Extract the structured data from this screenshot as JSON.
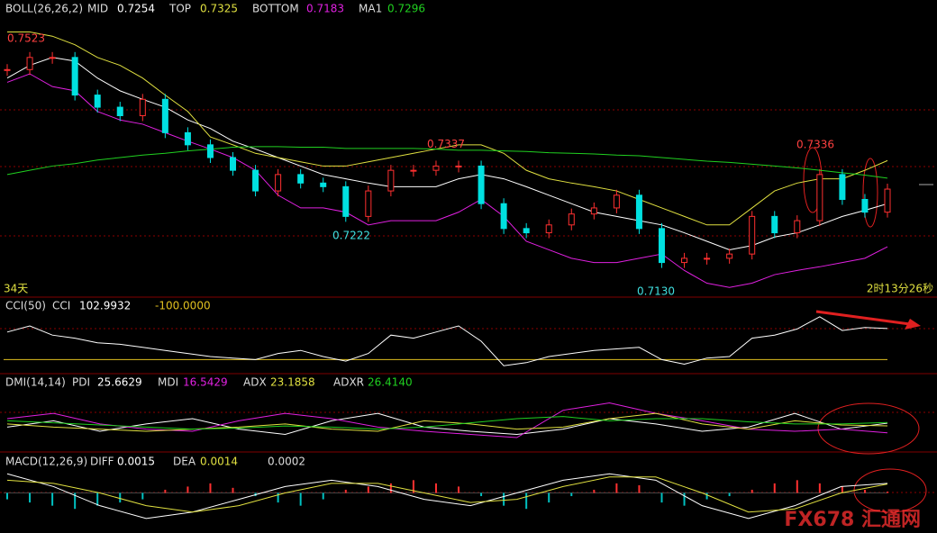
{
  "chart_data": [
    {
      "type": "candlestick",
      "title": "BOLL(26,26,2)",
      "ylim": [
        0.71,
        0.756
      ],
      "close": [
        0.7475,
        0.7495,
        0.7495,
        0.7433,
        0.7413,
        0.7399,
        0.7426,
        0.7371,
        0.7351,
        0.733,
        0.7309,
        0.7275,
        0.7302,
        0.7288,
        0.7282,
        0.7233,
        0.7275,
        0.7309,
        0.7309,
        0.7316,
        0.7316,
        0.7254,
        0.7213,
        0.7206,
        0.7219,
        0.7237,
        0.7247,
        0.7268,
        0.7213,
        0.7157,
        0.7164,
        0.7164,
        0.7171,
        0.7233,
        0.7206,
        0.7226,
        0.7302,
        0.7261,
        0.724,
        0.7278
      ],
      "series": [
        {
          "name": "MID",
          "color": "#ffffff",
          "value": 0.7254,
          "values": [
            0.7461,
            0.7482,
            0.7495,
            0.7489,
            0.7461,
            0.744,
            0.7426,
            0.7413,
            0.7392,
            0.7378,
            0.7357,
            0.7344,
            0.733,
            0.7316,
            0.7302,
            0.7295,
            0.7288,
            0.7282,
            0.7282,
            0.7282,
            0.7295,
            0.7302,
            0.7295,
            0.7282,
            0.7268,
            0.7254,
            0.724,
            0.7233,
            0.7226,
            0.7219,
            0.7206,
            0.7192,
            0.7178,
            0.7185,
            0.7199,
            0.7206,
            0.7219,
            0.7233,
            0.7243,
            0.7254
          ]
        },
        {
          "name": "TOP",
          "color": "#e0e040",
          "value": 0.7325,
          "values": [
            0.7537,
            0.7537,
            0.753,
            0.7516,
            0.7495,
            0.7482,
            0.7461,
            0.7433,
            0.7406,
            0.7364,
            0.7351,
            0.7337,
            0.733,
            0.7323,
            0.7316,
            0.7316,
            0.7323,
            0.733,
            0.7337,
            0.7344,
            0.7351,
            0.7351,
            0.7337,
            0.7309,
            0.7295,
            0.7288,
            0.7282,
            0.7275,
            0.7261,
            0.7247,
            0.7233,
            0.7219,
            0.7219,
            0.7247,
            0.7275,
            0.7288,
            0.7295,
            0.7295,
            0.7309,
            0.7325
          ]
        },
        {
          "name": "BOTTOM",
          "color": "#e020e0",
          "value": 0.7183,
          "values": [
            0.7454,
            0.7468,
            0.7447,
            0.744,
            0.7406,
            0.7392,
            0.7385,
            0.7371,
            0.7357,
            0.7344,
            0.733,
            0.7309,
            0.7268,
            0.7247,
            0.7247,
            0.724,
            0.7219,
            0.7226,
            0.7226,
            0.7226,
            0.724,
            0.7261,
            0.7233,
            0.7192,
            0.7178,
            0.7164,
            0.7157,
            0.7157,
            0.7164,
            0.7171,
            0.7144,
            0.7123,
            0.7116,
            0.7123,
            0.7137,
            0.7144,
            0.715,
            0.7157,
            0.7164,
            0.7183
          ]
        },
        {
          "name": "MA1",
          "color": "#20d020",
          "value": 0.7296,
          "values": [
            0.7302,
            0.7309,
            0.7316,
            0.732,
            0.7326,
            0.733,
            0.7334,
            0.7337,
            0.7341,
            0.7344,
            0.7347,
            0.7348,
            0.7348,
            0.7347,
            0.7347,
            0.7345,
            0.7345,
            0.7345,
            0.7345,
            0.7344,
            0.7342,
            0.7342,
            0.7341,
            0.734,
            0.7338,
            0.7337,
            0.7336,
            0.7334,
            0.7333,
            0.733,
            0.7327,
            0.7324,
            0.7322,
            0.7319,
            0.7316,
            0.7313,
            0.7309,
            0.7305,
            0.7301,
            0.7296
          ]
        }
      ],
      "annotations": [
        0.7523,
        0.7337,
        0.7222,
        {
          "value": 0.713,
          "label": "0.7130"
        },
        0.7336
      ],
      "period_label": "34天",
      "countdown": "2时13分26秒"
    },
    {
      "type": "line",
      "title": "CCI(50)",
      "ylim": [
        -180,
        220
      ],
      "series": [
        {
          "name": "CCI",
          "color": "#ffffff",
          "value": 102.9932,
          "values": [
            80,
            120,
            60,
            40,
            10,
            0,
            -20,
            -40,
            -60,
            -80,
            -90,
            -100,
            -60,
            -40,
            -80,
            -110,
            -60,
            60,
            40,
            80,
            120,
            20,
            -140,
            -120,
            -80,
            -60,
            -40,
            -30,
            -20,
            -100,
            -130,
            -90,
            -80,
            40,
            60,
            100,
            180,
            90,
            110,
            103
          ]
        }
      ],
      "reference": {
        "value": -100,
        "label": "-100.0000",
        "color": "#e0c020"
      }
    },
    {
      "type": "line",
      "title": "DMI(14,14)",
      "ylim": [
        0,
        60
      ],
      "series": [
        {
          "name": "PDI",
          "color": "#ffffff",
          "value": 25.6629,
          "values": [
            22,
            28,
            18,
            25,
            30,
            20,
            15,
            28,
            35,
            22,
            18,
            15,
            20,
            30,
            25,
            18,
            22,
            35,
            20,
            25.66
          ]
        },
        {
          "name": "MDI",
          "color": "#e020e0",
          "value": 16.5429,
          "values": [
            30,
            35,
            25,
            20,
            18,
            28,
            35,
            30,
            22,
            18,
            15,
            12,
            38,
            45,
            35,
            28,
            20,
            18,
            20,
            16.54
          ]
        },
        {
          "name": "ADX",
          "color": "#e0e040",
          "value": 23.1858,
          "values": [
            25,
            22,
            20,
            18,
            20,
            22,
            25,
            20,
            18,
            28,
            25,
            20,
            22,
            30,
            35,
            25,
            20,
            28,
            24,
            23.19
          ]
        },
        {
          "name": "ADXR",
          "color": "#20d020",
          "value": {
            "value": 26.414,
            "label": "26.4140"
          },
          "values": [
            28,
            26,
            24,
            22,
            20,
            21,
            23,
            22,
            20,
            22,
            26,
            30,
            32,
            28,
            30,
            30,
            27,
            25,
            25,
            26.41
          ]
        }
      ]
    },
    {
      "type": "macd",
      "title": "MACD(12,26,9)",
      "ylim": [
        -0.006,
        0.006
      ],
      "series": [
        {
          "name": "DIFF",
          "color": "#ffffff",
          "value": 0.0015,
          "values": [
            0.003,
            0.001,
            -0.002,
            -0.004,
            -0.003,
            -0.001,
            0.001,
            0.002,
            0.001,
            -0.001,
            -0.002,
            0.0,
            0.002,
            0.003,
            0.002,
            -0.002,
            -0.004,
            -0.002,
            0.001,
            0.0015
          ]
        },
        {
          "name": "DEA",
          "color": "#e0e040",
          "value": 0.0014,
          "values": [
            0.002,
            0.0015,
            0.0,
            -0.002,
            -0.003,
            -0.002,
            0.0,
            0.0015,
            0.0015,
            0.0,
            -0.0015,
            -0.001,
            0.001,
            0.0025,
            0.0025,
            0.0,
            -0.003,
            -0.0025,
            0.0,
            0.0014
          ]
        }
      ],
      "histogram": {
        "value": 0.0002,
        "up_color": "#ff3030",
        "down_color": "#00c0c0",
        "values": [
          -0.001,
          -0.0015,
          -0.002,
          -0.0025,
          -0.002,
          -0.0015,
          -0.001,
          0.0005,
          0.001,
          0.0015,
          0.0008,
          -0.0005,
          -0.0015,
          -0.002,
          -0.001,
          0.0005,
          0.001,
          0.0015,
          0.002,
          0.0015,
          0.001,
          -0.0005,
          -0.002,
          -0.0025,
          -0.0015,
          -0.0005,
          0.0005,
          0.0015,
          0.0012,
          -0.0015,
          -0.002,
          -0.001,
          -0.0005,
          0.0005,
          0.0015,
          0.002,
          0.0015,
          0.001,
          0.0005,
          0.0002
        ]
      }
    }
  ],
  "watermark": "FX678 汇通网"
}
